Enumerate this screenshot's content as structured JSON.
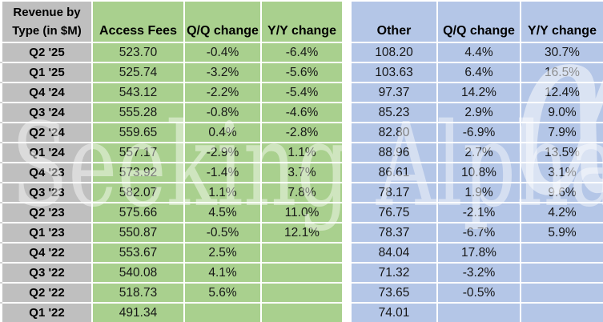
{
  "table": {
    "corner_title": "Revenue by\nType (in $M)"
  },
  "watermark": {
    "text": "Seeking Alpha",
    "symbol": "α"
  },
  "colors": {
    "green_section": "#A9D08E",
    "blue_section": "#B4C6E7",
    "header_gray": "#BFBFBF",
    "grid_white": "#FFFFFF"
  },
  "chart_data": {
    "type": "table",
    "title": "Revenue by Type (in $M)",
    "sections": [
      {
        "name": "Access Fees",
        "color": "#A9D08E"
      },
      {
        "name": "Other",
        "color": "#B4C6E7"
      }
    ],
    "columns": [
      "Access Fees",
      "Q/Q change",
      "Y/Y change",
      "Other",
      "Q/Q change",
      "Y/Y change"
    ],
    "rows": [
      {
        "quarter": "Q2 '25",
        "values": [
          "523.70",
          "-0.4%",
          "-6.4%",
          "108.20",
          "4.4%",
          "30.7%"
        ]
      },
      {
        "quarter": "Q1 '25",
        "values": [
          "525.74",
          "-3.2%",
          "-5.6%",
          "103.63",
          "6.4%",
          "16.5%"
        ]
      },
      {
        "quarter": "Q4 '24",
        "values": [
          "543.12",
          "-2.2%",
          "-5.4%",
          "97.37",
          "14.2%",
          "12.4%"
        ]
      },
      {
        "quarter": "Q3 '24",
        "values": [
          "555.28",
          "-0.8%",
          "-4.6%",
          "85.23",
          "2.9%",
          "9.0%"
        ]
      },
      {
        "quarter": "Q2 '24",
        "values": [
          "559.65",
          "0.4%",
          "-2.8%",
          "82.80",
          "-6.9%",
          "7.9%"
        ]
      },
      {
        "quarter": "Q1 '24",
        "values": [
          "557.17",
          "-2.9%",
          "1.1%",
          "88.96",
          "2.7%",
          "13.5%"
        ]
      },
      {
        "quarter": "Q4 '23",
        "values": [
          "573.92",
          "-1.4%",
          "3.7%",
          "86.61",
          "10.8%",
          "3.1%"
        ]
      },
      {
        "quarter": "Q3 '23",
        "values": [
          "582.07",
          "1.1%",
          "7.8%",
          "78.17",
          "1.9%",
          "9.6%"
        ]
      },
      {
        "quarter": "Q2 '23",
        "values": [
          "575.66",
          "4.5%",
          "11.0%",
          "76.75",
          "-2.1%",
          "4.2%"
        ]
      },
      {
        "quarter": "Q1 '23",
        "values": [
          "550.87",
          "-0.5%",
          "12.1%",
          "78.37",
          "-6.7%",
          "5.9%"
        ]
      },
      {
        "quarter": "Q4 '22",
        "values": [
          "553.67",
          "2.5%",
          "",
          "84.04",
          "17.8%",
          ""
        ]
      },
      {
        "quarter": "Q3 '22",
        "values": [
          "540.08",
          "4.1%",
          "",
          "71.32",
          "-3.2%",
          ""
        ]
      },
      {
        "quarter": "Q2 '22",
        "values": [
          "518.73",
          "5.6%",
          "",
          "73.65",
          "-0.5%",
          ""
        ]
      },
      {
        "quarter": "Q1 '22",
        "values": [
          "491.34",
          "",
          "",
          "74.01",
          "",
          ""
        ]
      }
    ]
  }
}
